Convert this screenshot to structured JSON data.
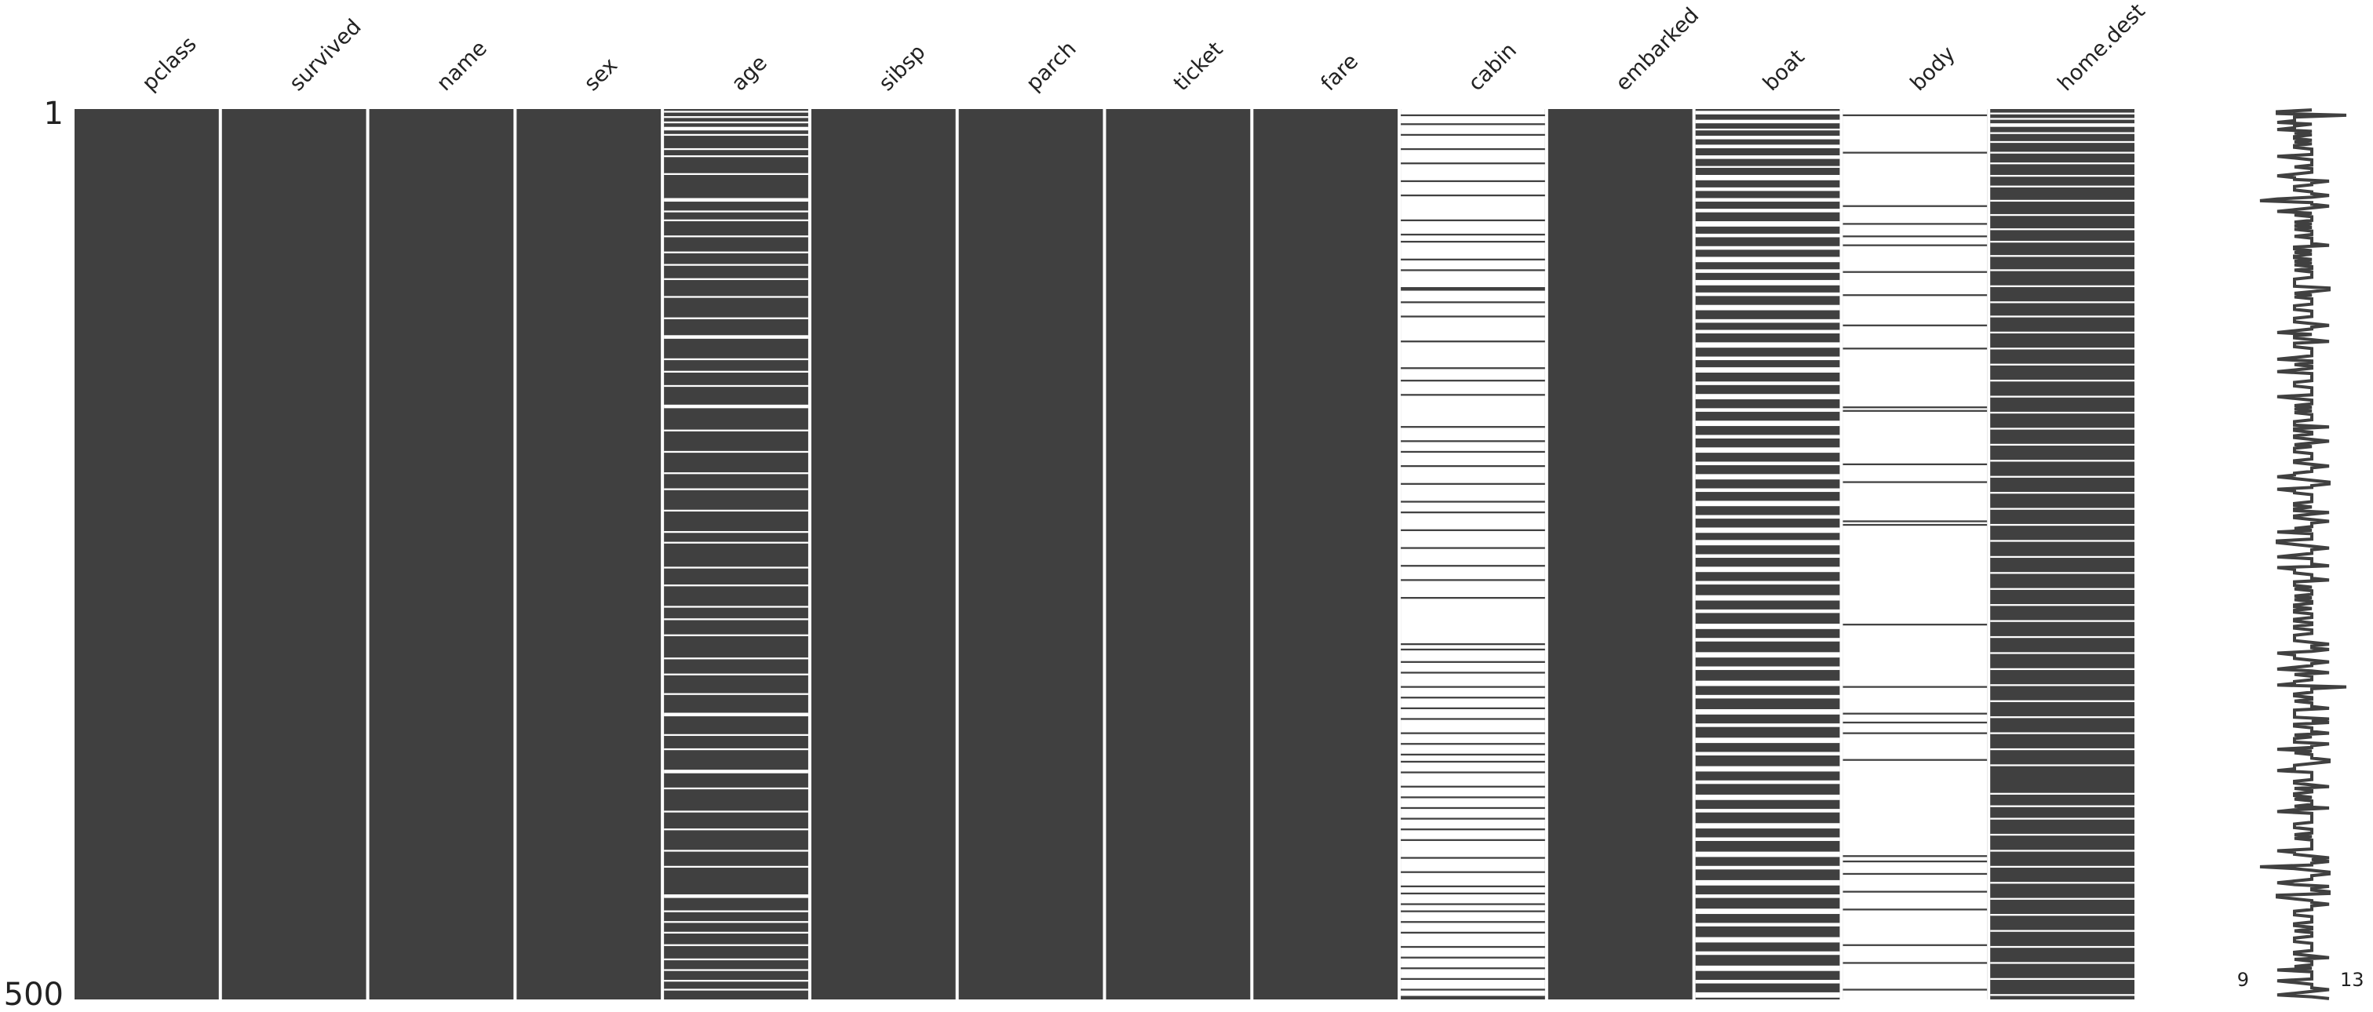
{
  "chart_data": {
    "type": "nullity-matrix",
    "columns": [
      "pclass",
      "survived",
      "name",
      "sex",
      "age",
      "sibsp",
      "parch",
      "ticket",
      "fare",
      "cabin",
      "embarked",
      "boat",
      "body",
      "home.dest"
    ],
    "color": "#404040",
    "ylim": [
      1,
      500
    ],
    "yticks": [
      1,
      500
    ],
    "sparkline_ticks": [
      9,
      13
    ],
    "missing": [
      [],
      [],
      [],
      [],
      [
        [
          2,
          2
        ],
        [
          5,
          5
        ],
        [
          8,
          8
        ],
        [
          11,
          12
        ],
        [
          15,
          15
        ],
        [
          23,
          23
        ],
        [
          27,
          27
        ],
        [
          37,
          37
        ],
        [
          51,
          52
        ],
        [
          58,
          58
        ],
        [
          63,
          63
        ],
        [
          72,
          72
        ],
        [
          81,
          81
        ],
        [
          88,
          88
        ],
        [
          96,
          96
        ],
        [
          106,
          106
        ],
        [
          118,
          118
        ],
        [
          128,
          129
        ],
        [
          141,
          141
        ],
        [
          148,
          148
        ],
        [
          156,
          156
        ],
        [
          167,
          168
        ],
        [
          181,
          181
        ],
        [
          193,
          193
        ],
        [
          205,
          205
        ],
        [
          214,
          214
        ],
        [
          226,
          226
        ],
        [
          238,
          238
        ],
        [
          244,
          244
        ],
        [
          258,
          258
        ],
        [
          268,
          268
        ],
        [
          280,
          280
        ],
        [
          287,
          287
        ],
        [
          296,
          296
        ],
        [
          309,
          309
        ],
        [
          318,
          318
        ],
        [
          329,
          329
        ],
        [
          340,
          341
        ],
        [
          352,
          352
        ],
        [
          360,
          360
        ],
        [
          372,
          373
        ],
        [
          382,
          382
        ],
        [
          395,
          395
        ],
        [
          405,
          405
        ],
        [
          417,
          417
        ],
        [
          426,
          426
        ],
        [
          442,
          443
        ],
        [
          451,
          451
        ],
        [
          457,
          457
        ],
        [
          463,
          463
        ],
        [
          470,
          470
        ],
        [
          478,
          478
        ],
        [
          484,
          484
        ],
        [
          490,
          490
        ],
        [
          495,
          495
        ]
      ],
      [],
      [],
      [],
      [],
      [
        [
          1,
          3
        ],
        [
          5,
          8
        ],
        [
          10,
          14
        ],
        [
          16,
          22
        ],
        [
          24,
          30
        ],
        [
          32,
          40
        ],
        [
          42,
          48
        ],
        [
          50,
          62
        ],
        [
          64,
          70
        ],
        [
          72,
          74
        ],
        [
          76,
          84
        ],
        [
          86,
          90
        ],
        [
          92,
          100
        ],
        [
          103,
          108
        ],
        [
          110,
          116
        ],
        [
          118,
          130
        ],
        [
          132,
          145
        ],
        [
          147,
          152
        ],
        [
          154,
          160
        ],
        [
          162,
          178
        ],
        [
          180,
          186
        ],
        [
          188,
          192
        ],
        [
          194,
          200
        ],
        [
          202,
          210
        ],
        [
          212,
          220
        ],
        [
          222,
          226
        ],
        [
          228,
          236
        ],
        [
          238,
          246
        ],
        [
          248,
          256
        ],
        [
          258,
          264
        ],
        [
          266,
          274
        ],
        [
          276,
          300
        ],
        [
          302,
          303
        ],
        [
          305,
          310
        ],
        [
          312,
          316
        ],
        [
          318,
          324
        ],
        [
          326,
          330
        ],
        [
          332,
          336
        ],
        [
          338,
          342
        ],
        [
          344,
          350
        ],
        [
          352,
          356
        ],
        [
          358,
          362
        ],
        [
          364,
          366
        ],
        [
          368,
          372
        ],
        [
          374,
          380
        ],
        [
          382,
          386
        ],
        [
          388,
          392
        ],
        [
          394,
          398
        ],
        [
          400,
          404
        ],
        [
          406,
          410
        ],
        [
          412,
          420
        ],
        [
          422,
          428
        ],
        [
          430,
          436
        ],
        [
          438,
          440
        ],
        [
          442,
          446
        ],
        [
          448,
          450
        ],
        [
          452,
          456
        ],
        [
          458,
          462
        ],
        [
          464,
          470
        ],
        [
          472,
          476
        ],
        [
          478,
          482
        ],
        [
          484,
          488
        ],
        [
          490,
          494
        ],
        [
          496,
          498
        ]
      ],
      [],
      [
        [
          2,
          3
        ],
        [
          7,
          8
        ],
        [
          12,
          12
        ],
        [
          16,
          17
        ],
        [
          21,
          22
        ],
        [
          27,
          28
        ],
        [
          33,
          33
        ],
        [
          38,
          40
        ],
        [
          45,
          46
        ],
        [
          51,
          52
        ],
        [
          57,
          58
        ],
        [
          64,
          66
        ],
        [
          71,
          72
        ],
        [
          78,
          79
        ],
        [
          84,
          86
        ],
        [
          91,
          92
        ],
        [
          97,
          99
        ],
        [
          104,
          105
        ],
        [
          111,
          113
        ],
        [
          119,
          120
        ],
        [
          125,
          126
        ],
        [
          132,
          134
        ],
        [
          140,
          141
        ],
        [
          146,
          148
        ],
        [
          154,
          155
        ],
        [
          161,
          163
        ],
        [
          169,
          170
        ],
        [
          176,
          178
        ],
        [
          184,
          185
        ],
        [
          191,
          193
        ],
        [
          199,
          200
        ],
        [
          206,
          208
        ],
        [
          214,
          215
        ],
        [
          221,
          223
        ],
        [
          229,
          230
        ],
        [
          236,
          238
        ],
        [
          243,
          245
        ],
        [
          251,
          252
        ],
        [
          258,
          260
        ],
        [
          266,
          267
        ],
        [
          274,
          276
        ],
        [
          282,
          283
        ],
        [
          290,
          292
        ],
        [
          298,
          299
        ],
        [
          306,
          308
        ],
        [
          314,
          315
        ],
        [
          322,
          324
        ],
        [
          330,
          331
        ],
        [
          338,
          340
        ],
        [
          346,
          347
        ],
        [
          354,
          356
        ],
        [
          362,
          363
        ],
        [
          370,
          372
        ],
        [
          378,
          379
        ],
        [
          386,
          388
        ],
        [
          394,
          395
        ],
        [
          402,
          404
        ],
        [
          410,
          411
        ],
        [
          418,
          420
        ],
        [
          426,
          427
        ],
        [
          434,
          436
        ],
        [
          442,
          443
        ],
        [
          450,
          452
        ],
        [
          458,
          459
        ],
        [
          466,
          468
        ],
        [
          474,
          475
        ],
        [
          482,
          484
        ],
        [
          490,
          491
        ],
        [
          497,
          499
        ]
      ],
      [
        [
          1,
          3
        ],
        [
          5,
          24
        ],
        [
          26,
          54
        ],
        [
          56,
          64
        ],
        [
          66,
          71
        ],
        [
          73,
          76
        ],
        [
          78,
          91
        ],
        [
          93,
          104
        ],
        [
          106,
          121
        ],
        [
          123,
          134
        ],
        [
          136,
          167
        ],
        [
          169,
          169
        ],
        [
          171,
          199
        ],
        [
          201,
          209
        ],
        [
          211,
          231
        ],
        [
          233,
          233
        ],
        [
          235,
          289
        ],
        [
          291,
          324
        ],
        [
          326,
          339
        ],
        [
          341,
          344
        ],
        [
          346,
          350
        ],
        [
          352,
          365
        ],
        [
          367,
          419
        ],
        [
          421,
          422
        ],
        [
          424,
          429
        ],
        [
          431,
          439
        ],
        [
          441,
          449
        ],
        [
          451,
          469
        ],
        [
          471,
          479
        ],
        [
          481,
          494
        ],
        [
          496,
          500
        ]
      ],
      [
        [
          3,
          3
        ],
        [
          6,
          6
        ],
        [
          9,
          10
        ],
        [
          14,
          14
        ],
        [
          19,
          19
        ],
        [
          25,
          25
        ],
        [
          31,
          31
        ],
        [
          38,
          38
        ],
        [
          44,
          44
        ],
        [
          52,
          52
        ],
        [
          60,
          60
        ],
        [
          68,
          68
        ],
        [
          75,
          75
        ],
        [
          83,
          83
        ],
        [
          91,
          91
        ],
        [
          100,
          100
        ],
        [
          109,
          109
        ],
        [
          117,
          117
        ],
        [
          126,
          126
        ],
        [
          135,
          135
        ],
        [
          144,
          144
        ],
        [
          153,
          153
        ],
        [
          162,
          162
        ],
        [
          171,
          171
        ],
        [
          180,
          180
        ],
        [
          189,
          189
        ],
        [
          198,
          198
        ],
        [
          207,
          207
        ],
        [
          216,
          216
        ],
        [
          225,
          225
        ],
        [
          234,
          234
        ],
        [
          243,
          243
        ],
        [
          252,
          252
        ],
        [
          261,
          261
        ],
        [
          270,
          270
        ],
        [
          279,
          279
        ],
        [
          288,
          288
        ],
        [
          297,
          297
        ],
        [
          306,
          306
        ],
        [
          315,
          315
        ],
        [
          324,
          324
        ],
        [
          333,
          333
        ],
        [
          342,
          342
        ],
        [
          351,
          351
        ],
        [
          360,
          360
        ],
        [
          369,
          369
        ],
        [
          385,
          385
        ],
        [
          392,
          392
        ],
        [
          399,
          399
        ],
        [
          408,
          408
        ],
        [
          417,
          417
        ],
        [
          426,
          426
        ],
        [
          435,
          435
        ],
        [
          444,
          444
        ],
        [
          453,
          453
        ],
        [
          462,
          462
        ],
        [
          471,
          471
        ],
        [
          480,
          480
        ],
        [
          489,
          489
        ],
        [
          498,
          498
        ]
      ]
    ]
  }
}
